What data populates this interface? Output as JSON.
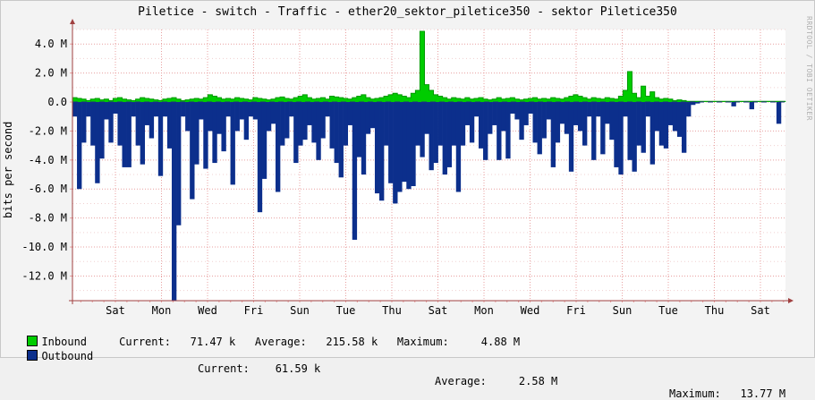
{
  "chart_data": {
    "type": "area",
    "title": "Piletice - switch - Traffic - ether20_sektor_piletice350 - sektor Piletice350",
    "ylabel": "bits per second",
    "ylim": [
      -13700000,
      5000000
    ],
    "yticks": [
      {
        "v": 4000000,
        "label": "4.0 M"
      },
      {
        "v": 2000000,
        "label": "2.0 M"
      },
      {
        "v": 0,
        "label": "0.0"
      },
      {
        "v": -2000000,
        "label": "-2.0 M"
      },
      {
        "v": -4000000,
        "label": "-4.0 M"
      },
      {
        "v": -6000000,
        "label": "-6.0 M"
      },
      {
        "v": -8000000,
        "label": "-8.0 M"
      },
      {
        "v": -10000000,
        "label": "-10.0 M"
      },
      {
        "v": -12000000,
        "label": "-12.0 M"
      }
    ],
    "xticks": [
      "Sat",
      "Mon",
      "Wed",
      "Fri",
      "Sun",
      "Tue",
      "Thu",
      "Sat",
      "Mon",
      "Wed",
      "Fri",
      "Sun",
      "Tue",
      "Thu",
      "Sat"
    ],
    "grid": true,
    "series": [
      {
        "name": "Inbound",
        "color": "#00cc00",
        "values": [
          0.3,
          0.25,
          0.2,
          0.1,
          0.2,
          0.25,
          0.15,
          0.2,
          0.1,
          0.25,
          0.3,
          0.2,
          0.15,
          0.1,
          0.2,
          0.3,
          0.25,
          0.2,
          0.15,
          0.1,
          0.2,
          0.25,
          0.3,
          0.2,
          0.1,
          0.15,
          0.2,
          0.25,
          0.2,
          0.3,
          0.5,
          0.4,
          0.3,
          0.2,
          0.25,
          0.2,
          0.3,
          0.25,
          0.2,
          0.15,
          0.3,
          0.25,
          0.2,
          0.15,
          0.2,
          0.3,
          0.35,
          0.25,
          0.2,
          0.3,
          0.4,
          0.5,
          0.3,
          0.2,
          0.25,
          0.3,
          0.2,
          0.4,
          0.35,
          0.3,
          0.25,
          0.2,
          0.3,
          0.4,
          0.5,
          0.3,
          0.2,
          0.25,
          0.3,
          0.4,
          0.5,
          0.6,
          0.5,
          0.4,
          0.3,
          0.6,
          0.8,
          4.88,
          1.2,
          0.8,
          0.5,
          0.4,
          0.3,
          0.2,
          0.3,
          0.25,
          0.2,
          0.3,
          0.2,
          0.25,
          0.3,
          0.2,
          0.15,
          0.2,
          0.3,
          0.2,
          0.25,
          0.3,
          0.2,
          0.15,
          0.2,
          0.25,
          0.3,
          0.2,
          0.25,
          0.2,
          0.3,
          0.25,
          0.2,
          0.3,
          0.4,
          0.5,
          0.4,
          0.3,
          0.2,
          0.3,
          0.25,
          0.2,
          0.3,
          0.25,
          0.2,
          0.4,
          0.8,
          2.1,
          0.6,
          0.3,
          1.1,
          0.4,
          0.7,
          0.3,
          0.2,
          0.25,
          0.2,
          0.1,
          0.15,
          0.1,
          0.05,
          0.05,
          0.05,
          0.05,
          0.05,
          0.05,
          0.05,
          0.05,
          0.05,
          0.05,
          0.05,
          0.05,
          0.05,
          0.05,
          0.05,
          0.05,
          0.05,
          0.05,
          0.05,
          0.05,
          0.05,
          0.05
        ],
        "values_unit": "M"
      },
      {
        "name": "Outbound",
        "color": "#0c2f8c",
        "values": [
          1.0,
          6.0,
          2.8,
          1.0,
          3.0,
          5.6,
          3.9,
          1.2,
          2.8,
          0.8,
          3.0,
          4.5,
          4.5,
          1.0,
          3.0,
          4.3,
          1.6,
          2.5,
          1.0,
          5.1,
          1.0,
          3.2,
          13.7,
          8.5,
          1.0,
          2.0,
          6.7,
          4.3,
          1.2,
          4.6,
          2.0,
          4.2,
          2.2,
          3.4,
          1.0,
          5.7,
          2.0,
          1.2,
          2.6,
          1.0,
          1.2,
          7.6,
          5.3,
          2.0,
          1.5,
          6.2,
          3.0,
          2.5,
          1.0,
          4.2,
          3.0,
          2.6,
          1.6,
          2.8,
          4.0,
          2.5,
          1.0,
          3.2,
          4.2,
          5.2,
          3.0,
          1.6,
          9.5,
          3.8,
          5.0,
          2.2,
          1.8,
          6.3,
          6.8,
          3.0,
          5.6,
          7.0,
          6.2,
          5.5,
          6.0,
          5.8,
          3.0,
          3.8,
          2.2,
          4.7,
          4.2,
          3.0,
          5.0,
          4.5,
          3.0,
          6.2,
          3.0,
          1.6,
          2.8,
          1.0,
          3.2,
          4.0,
          2.2,
          1.6,
          4.0,
          2.0,
          3.9,
          0.8,
          1.2,
          2.6,
          1.6,
          0.8,
          2.8,
          3.6,
          2.5,
          1.2,
          4.5,
          2.8,
          1.5,
          2.2,
          4.8,
          1.6,
          2.0,
          3.0,
          1.0,
          4.0,
          1.0,
          3.6,
          1.5,
          2.6,
          4.5,
          5.0,
          1.0,
          4.0,
          4.8,
          3.0,
          3.5,
          1.0,
          4.3,
          2.0,
          3.0,
          3.2,
          1.6,
          2.0,
          2.4,
          3.5,
          1.0,
          0.2,
          0.1,
          0,
          0,
          0,
          0,
          0,
          0,
          0,
          0.3,
          0,
          0,
          0,
          0.5,
          0,
          0,
          0,
          0,
          0,
          1.5,
          0,
          0,
          0.4,
          0.1,
          0
        ],
        "values_unit": "M (negative)"
      }
    ],
    "legend": [
      {
        "name": "Inbound",
        "color": "#00cc00",
        "current": "71.47 k",
        "average": "215.58 k",
        "maximum": "4.88 M"
      },
      {
        "name": "Outbound",
        "color": "#0c2f8c",
        "current": "61.59 k",
        "average": "2.58 M",
        "maximum": "13.77 M"
      }
    ]
  },
  "watermark": "RRDTOOL / TOBI OETIKER",
  "labels": {
    "current": "Current:",
    "average": "Average:",
    "maximum": "Maximum:"
  }
}
